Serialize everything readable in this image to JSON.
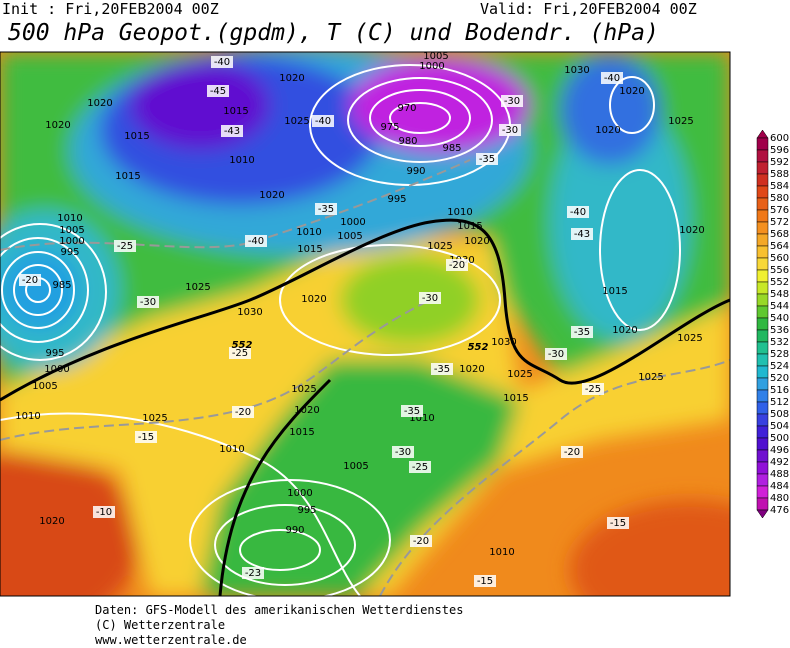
{
  "header": {
    "init": "Init : Fri,20FEB2004 00Z",
    "valid": "Valid: Fri,20FEB2004 00Z",
    "title": "500 hPa Geopot.(gpdm), T (C) und Bodendr. (hPa)"
  },
  "colorbar": {
    "levels": [
      600,
      596,
      592,
      588,
      584,
      580,
      576,
      572,
      568,
      564,
      560,
      556,
      552,
      548,
      544,
      540,
      536,
      532,
      528,
      524,
      520,
      516,
      512,
      508,
      504,
      500,
      496,
      492,
      488,
      484,
      480,
      476
    ],
    "colors": [
      "#a0004a",
      "#b01040",
      "#c02030",
      "#d03020",
      "#e04818",
      "#e86018",
      "#f07818",
      "#f49020",
      "#f4a828",
      "#f8c030",
      "#f8d838",
      "#f0f030",
      "#c8e828",
      "#98d828",
      "#60c830",
      "#30b840",
      "#20b860",
      "#20c090",
      "#20c0b0",
      "#20b8d0",
      "#30a0e0",
      "#3080e8",
      "#3060e8",
      "#3840e0",
      "#4020d8",
      "#5010d0",
      "#7010d0",
      "#9010d8",
      "#b020e0",
      "#d020d8",
      "#c010b0",
      "#800080"
    ]
  },
  "map": {
    "pressure_labels": [
      1020,
      1020,
      1015,
      1015,
      1010,
      1005,
      1000,
      995,
      985,
      1025,
      995,
      1000,
      1005,
      1010,
      1025,
      1020,
      1010,
      1000,
      995,
      990,
      1005,
      1015,
      1020,
      1025,
      1030,
      1020,
      1010,
      1015,
      1020,
      1025,
      1020,
      1010,
      1015,
      1005,
      1000,
      995,
      990,
      985,
      980,
      975,
      970,
      1005,
      1000,
      1010,
      1015,
      1020,
      1025,
      1030,
      1030,
      1025,
      1015,
      1020,
      1010,
      1030,
      1020,
      1025,
      1020,
      1015,
      1020,
      1025,
      1025,
      1010,
      1020
    ],
    "temperature_labels": [
      -40,
      -45,
      -43,
      -40,
      -35,
      -40,
      -30,
      -30,
      -35,
      -25,
      -20,
      -30,
      -25,
      -20,
      -15,
      -10,
      -20,
      -30,
      -35,
      -35,
      -30,
      -25,
      -20,
      -15,
      -20,
      -25,
      -30,
      -35,
      -40,
      -43,
      -40,
      -15,
      -23
    ],
    "height_labels": [
      552,
      552
    ]
  },
  "footer": {
    "lines": [
      "Daten: GFS-Modell des amerikanischen Wetterdienstes",
      "(C) Wetterzentrale",
      "www.wetterzentrale.de"
    ]
  }
}
